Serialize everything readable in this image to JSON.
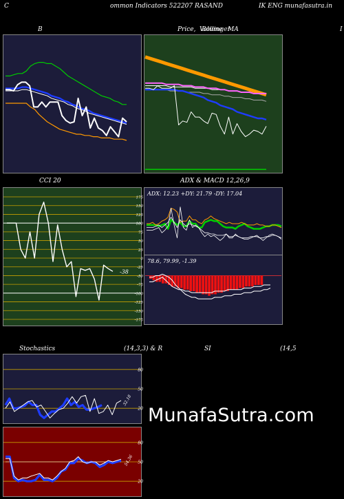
{
  "header": {
    "left": "C",
    "title": "ommon  Indicators 522207 RASAND",
    "right": "IK ENG munafasutra.in"
  },
  "titles": {
    "bollinger": "B",
    "price_ma_prefix": "Price,",
    "price_ma_overlap": "Volume",
    "price_ma_overlap2": "Bollinger",
    "price_ma_suffix": "MA",
    "right_edge": "I",
    "cci": "CCI 20",
    "adx_macd": "ADX  & MACD 12,26,9",
    "stoch": "Stochastics",
    "stoch_params": "(14,3,3) & R",
    "rsi": "SI",
    "rsi_params": "(14,5"
  },
  "colors": {
    "navy": "#1c1c3a",
    "green_bg": "#1d401d",
    "red_bg": "#7a0000",
    "white": "#ffffff",
    "blue": "#1e3cff",
    "orange": "#ff9900",
    "green": "#00cc00"
  },
  "watermark": "MunafaSutra.com",
  "chart_data": [
    {
      "id": "bollinger",
      "type": "line",
      "ylim": [
        0,
        100
      ],
      "series": [
        {
          "color": "#00cc00",
          "values": [
            72,
            72,
            73,
            74,
            74,
            76,
            80,
            82,
            83,
            83,
            82,
            82,
            80,
            78,
            75,
            72,
            70,
            68,
            66,
            64,
            62,
            60,
            58,
            56,
            55,
            54,
            52,
            51,
            49,
            49
          ]
        },
        {
          "color": "#1e3cff",
          "values": [
            62,
            62,
            62,
            62,
            63,
            63,
            62,
            61,
            60,
            59,
            58,
            56,
            55,
            54,
            52,
            51,
            49,
            48,
            46,
            45,
            44,
            42,
            41,
            40,
            39,
            38,
            37,
            36,
            35,
            34
          ]
        },
        {
          "color": "#ffffff",
          "values": [
            60,
            60,
            60,
            60,
            61,
            61,
            60,
            59,
            58,
            57,
            56,
            54,
            53,
            52,
            51,
            49,
            48,
            46,
            45,
            44,
            42,
            41,
            40,
            39,
            38,
            37,
            36,
            35,
            34,
            33
          ]
        },
        {
          "color": "#ff9900",
          "values": [
            50,
            50,
            50,
            50,
            50,
            50,
            47,
            45,
            41,
            38,
            35,
            33,
            31,
            29,
            28,
            27,
            26,
            25,
            25,
            24,
            24,
            23,
            23,
            22,
            22,
            22,
            21,
            21,
            21,
            20
          ]
        },
        {
          "color": "#ffffff",
          "values": [
            61,
            61,
            60,
            65,
            67,
            67,
            64,
            47,
            47,
            51,
            47,
            51,
            51,
            51,
            40,
            36,
            34,
            35,
            54,
            40,
            47,
            30,
            38,
            30,
            28,
            24,
            31,
            27,
            23,
            38,
            35
          ]
        }
      ]
    },
    {
      "id": "price_ma",
      "type": "line",
      "ylim": [
        0,
        100
      ],
      "series": [
        {
          "color": "#ff9900",
          "values": [
            87,
            86,
            85,
            84,
            83,
            82,
            81,
            80,
            79,
            78,
            77,
            76,
            75,
            74,
            73,
            72,
            71,
            70,
            69,
            68,
            67,
            66,
            65,
            64,
            63,
            62,
            61,
            60,
            59,
            58
          ]
        },
        {
          "color": "#ffffff",
          "values": [
            65,
            65,
            65,
            65,
            65,
            65,
            64,
            64,
            64,
            64,
            64,
            64,
            63,
            63,
            63,
            63,
            62,
            62,
            62,
            62,
            61,
            61,
            61,
            60,
            60,
            60,
            59,
            59,
            59,
            59
          ]
        },
        {
          "color": "#ff66ff",
          "values": [
            67,
            67,
            67,
            67,
            67,
            66,
            66,
            66,
            66,
            65,
            65,
            65,
            64,
            64,
            64,
            63,
            63,
            63,
            62,
            62,
            61,
            61,
            61,
            60,
            60,
            60,
            59,
            59,
            59,
            59
          ]
        },
        {
          "color": "#aaaaaa",
          "values": [
            62,
            62,
            62,
            62,
            62,
            62,
            61,
            61,
            61,
            61,
            60,
            60,
            60,
            60,
            59,
            59,
            58,
            58,
            58,
            57,
            57,
            56,
            56,
            56,
            55,
            55,
            54,
            54,
            54,
            53
          ]
        },
        {
          "color": "#1e3cff",
          "values": [
            62,
            62,
            62,
            62,
            62,
            62,
            62,
            62,
            61,
            61,
            60,
            59,
            58,
            57,
            56,
            54,
            53,
            52,
            50,
            49,
            48,
            47,
            45,
            44,
            43,
            42,
            41,
            40,
            40,
            39
          ]
        },
        {
          "color": "#ffffff",
          "values": [
            63,
            63,
            62,
            65,
            63,
            63,
            63,
            65,
            35,
            38,
            37,
            45,
            41,
            41,
            38,
            36,
            44,
            43,
            34,
            28,
            41,
            28,
            36,
            30,
            26,
            28,
            31,
            30,
            28,
            34
          ]
        },
        {
          "color": "#00cc00",
          "values": [
            1,
            1,
            1,
            1,
            1,
            1,
            1,
            1,
            1,
            1,
            1,
            1,
            1,
            1,
            1,
            1,
            1,
            1,
            1,
            1,
            1,
            1,
            1,
            1,
            1,
            1,
            1,
            1,
            1,
            1
          ]
        }
      ]
    },
    {
      "id": "cci",
      "type": "line",
      "ylim": [
        -175,
        175
      ],
      "yticks": [
        175,
        150,
        125,
        100,
        75,
        50,
        25,
        0,
        -25,
        -50,
        -75,
        -100,
        -125,
        -150,
        -175
      ],
      "last_label": "-38",
      "series": [
        {
          "color": "#ffffff",
          "values": [
            100,
            100,
            100,
            25,
            0,
            75,
            0,
            125,
            160,
            100,
            -10,
            95,
            25,
            -25,
            -10,
            -110,
            -30,
            -35,
            -30,
            -60,
            -120,
            -20,
            -30,
            -38
          ]
        }
      ]
    },
    {
      "id": "adx",
      "type": "line",
      "ylim": [
        0,
        50
      ],
      "label": "ADX: 12.23  +DY: 21.79 -DY: 17.04",
      "series": [
        {
          "color": "#00cc00",
          "values": [
            24,
            24,
            24,
            24,
            23,
            24,
            25,
            21,
            28,
            26,
            24,
            26,
            23,
            23,
            27,
            25,
            25,
            22,
            22,
            26,
            27,
            28,
            27,
            27,
            25,
            23,
            22,
            22,
            22,
            21,
            23,
            24,
            25,
            23,
            22,
            21,
            21,
            21,
            22,
            23,
            23,
            24,
            24,
            24,
            23
          ]
        },
        {
          "color": "#ff9900",
          "values": [
            25,
            25,
            26,
            24,
            25,
            27,
            28,
            30,
            37,
            36,
            34,
            26,
            27,
            27,
            31,
            28,
            28,
            26,
            25,
            28,
            29,
            31,
            29,
            28,
            27,
            26,
            25,
            26,
            25,
            25,
            25,
            26,
            25,
            24,
            24,
            24,
            25,
            24,
            24,
            23,
            23,
            24,
            24,
            23,
            22
          ]
        },
        {
          "color": "#ffffff",
          "values": [
            20,
            20,
            20,
            21,
            22,
            18,
            20,
            23,
            37,
            24,
            14,
            38,
            22,
            20,
            28,
            22,
            24,
            22,
            18,
            15,
            17,
            15,
            16,
            14,
            12,
            14,
            17,
            14,
            14,
            17,
            15,
            14,
            13,
            13,
            14,
            15,
            16,
            14,
            12,
            14,
            16,
            17,
            16,
            15,
            13
          ]
        },
        {
          "color": "#ffffff",
          "values": [
            22,
            22,
            22,
            23,
            24,
            22,
            24,
            26,
            30,
            26,
            22,
            28,
            25,
            23,
            25,
            24,
            23,
            22,
            20,
            18,
            18,
            17,
            17,
            16,
            16,
            16,
            17,
            15,
            15,
            16,
            15,
            14,
            14,
            14,
            15,
            15,
            15,
            14,
            14,
            15,
            15,
            16,
            16,
            15,
            14
          ]
        }
      ]
    },
    {
      "id": "macd",
      "type": "bar",
      "label": "78.6,  79.99,  -1.39",
      "ylim": [
        -30,
        10
      ],
      "histogram": [
        -2,
        -3,
        -4,
        -4,
        -5,
        -5,
        -6,
        -7,
        -7,
        -8,
        -8,
        -9,
        -9,
        -10,
        -10,
        -11,
        -11,
        -12,
        -12,
        -13,
        -12,
        -12,
        -11,
        -11,
        -10,
        -10,
        -9,
        -9,
        -9,
        -8,
        -8,
        -7,
        -7,
        -7,
        -6,
        -6,
        -6
      ],
      "series": [
        {
          "color": "#ffffff",
          "values": [
            -4,
            -4,
            -3,
            -2,
            -1,
            -3,
            -5,
            -7,
            -8,
            -9,
            -9,
            -10,
            -10,
            -11,
            -11,
            -11,
            -11,
            -11,
            -11,
            -11,
            -10,
            -10,
            -10,
            -10,
            -9,
            -9,
            -9,
            -9,
            -9,
            -8,
            -8,
            -8,
            -7,
            -7,
            -7,
            -6,
            -6,
            -6
          ]
        },
        {
          "color": "#ffffff",
          "values": [
            -1,
            -1,
            0,
            0,
            1,
            0,
            -1,
            -3,
            -6,
            -8,
            -10,
            -12,
            -13,
            -14,
            -14,
            -15,
            -15,
            -15,
            -15,
            -15,
            -14,
            -14,
            -14,
            -13,
            -13,
            -13,
            -12,
            -12,
            -12,
            -11,
            -11,
            -11,
            -10,
            -10,
            -10,
            -9,
            -9,
            -8
          ]
        }
      ]
    },
    {
      "id": "stoch",
      "type": "line",
      "ylim": [
        0,
        100
      ],
      "yticks": [
        80,
        50,
        20
      ],
      "last_label": "32.18",
      "series": [
        {
          "color": "#1e3cff",
          "values": [
            25,
            35,
            20,
            20,
            22,
            24,
            30,
            25,
            25,
            10,
            5,
            10,
            15,
            15,
            20,
            25,
            35,
            25,
            30,
            22,
            25,
            18,
            18,
            20,
            22,
            25
          ]
        },
        {
          "color": "#ffffff",
          "values": [
            20,
            30,
            15,
            20,
            25,
            30,
            32,
            22,
            25,
            15,
            5,
            12,
            18,
            20,
            28,
            38,
            28,
            38,
            40,
            15,
            35,
            12,
            15,
            25,
            10,
            28,
            32
          ]
        }
      ]
    },
    {
      "id": "rsi",
      "type": "line",
      "ylim": [
        0,
        100
      ],
      "yticks": [
        80,
        50,
        20
      ],
      "last_label": "54.36",
      "series": [
        {
          "color": "#ffffff",
          "values": [
            50,
            50,
            50,
            50,
            50,
            50,
            50,
            50,
            50,
            50,
            50,
            50,
            50,
            50,
            50,
            50,
            50,
            50,
            50,
            50,
            50,
            50,
            50,
            50,
            50,
            50,
            50,
            50
          ]
        },
        {
          "color": "#1e3cff",
          "values": [
            58,
            58,
            25,
            20,
            22,
            20,
            20,
            22,
            30,
            22,
            22,
            20,
            25,
            35,
            38,
            48,
            48,
            55,
            52,
            48,
            50,
            48,
            42,
            45,
            50,
            48,
            50,
            52
          ]
        },
        {
          "color": "#ffffff",
          "values": [
            55,
            55,
            28,
            22,
            25,
            25,
            28,
            30,
            32,
            25,
            25,
            22,
            28,
            35,
            40,
            50,
            52,
            58,
            50,
            48,
            50,
            50,
            45,
            48,
            52,
            50,
            52,
            54
          ]
        }
      ]
    }
  ]
}
